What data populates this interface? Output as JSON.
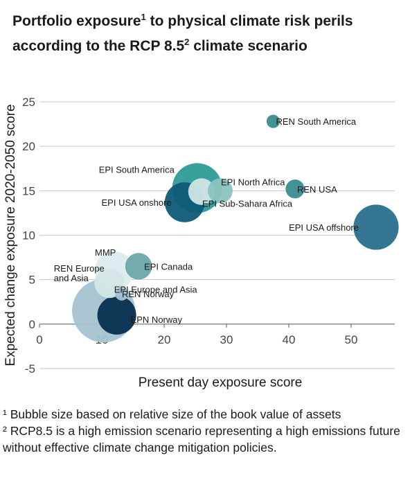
{
  "title": {
    "line1_a": "Portfolio exposure",
    "line1_sup": "1",
    "line1_b": " to physical climate risk perils",
    "line2_a": "according to the RCP 8.5",
    "line2_sup": "2",
    "line2_b": " climate scenario"
  },
  "footnotes": [
    "¹ Bubble size based on relative size of the book value of assets",
    "² RCP8.5 is a high emission scenario representing a high emissions future without effective climate change mitigation policies."
  ],
  "chart_data": {
    "type": "bubble",
    "xlabel": "Present day exposure score",
    "ylabel": "Expected change exposure 2020-2050 score",
    "xlim": [
      0,
      57
    ],
    "ylim": [
      -5,
      25
    ],
    "xticks": [
      0,
      10,
      20,
      30,
      40,
      50
    ],
    "yticks": [
      -5,
      0,
      5,
      10,
      15,
      20,
      25
    ],
    "grid": "horizontal",
    "points": [
      {
        "label": "REN South America",
        "x": 37.5,
        "y": 22.8,
        "size": 2,
        "color": "#3a8c91",
        "label_pos": "right"
      },
      {
        "label": "EPI South America",
        "x": 25.3,
        "y": 15.3,
        "size": 28,
        "color": "#2e9c96",
        "label_pos": "left"
      },
      {
        "label": "EPI North Africa",
        "x": 29.0,
        "y": 15.0,
        "size": 7,
        "color": "#8cc4c0",
        "label_pos": "right"
      },
      {
        "label": "EPI Sub-Sahara Africa",
        "x": 26.0,
        "y": 14.9,
        "size": 8,
        "color": "#cfe6e4",
        "label_pos": "right"
      },
      {
        "label": "REN USA",
        "x": 41.0,
        "y": 15.2,
        "size": 4,
        "color": "#3a8c91",
        "label_pos": "right"
      },
      {
        "label": "EPI USA onshore",
        "x": 23.3,
        "y": 13.7,
        "size": 18,
        "color": "#0e5a78",
        "label_pos": "left"
      },
      {
        "label": "EPI USA offshore",
        "x": 54.0,
        "y": 10.9,
        "size": 23,
        "color": "#2a6f8f",
        "label_pos": "left"
      },
      {
        "label": "MMP",
        "x": 12.0,
        "y": 6.0,
        "size": 17,
        "color": "#dcebf0",
        "label_pos": "above-left"
      },
      {
        "label": "EPI Canada",
        "x": 15.9,
        "y": 6.5,
        "size": 8,
        "color": "#6aa8a8",
        "label_pos": "right"
      },
      {
        "label": "REN Europe and Asia",
        "x": 11.2,
        "y": 4.6,
        "size": 10,
        "color": "#d2e6e4",
        "label_pos": "left"
      },
      {
        "label": "REN Norway",
        "x": 13.2,
        "y": 3.4,
        "size": 2,
        "color": "#a7c3d1",
        "label_pos": "right"
      },
      {
        "label": "EPI Europe and Asia",
        "x": 10.3,
        "y": 1.5,
        "size": 45,
        "color": "#a7c3d1",
        "label_pos": "right-up"
      },
      {
        "label": "EPN Norway",
        "x": 12.4,
        "y": 1.0,
        "size": 17,
        "color": "#062f4f",
        "label_pos": "right"
      }
    ]
  }
}
